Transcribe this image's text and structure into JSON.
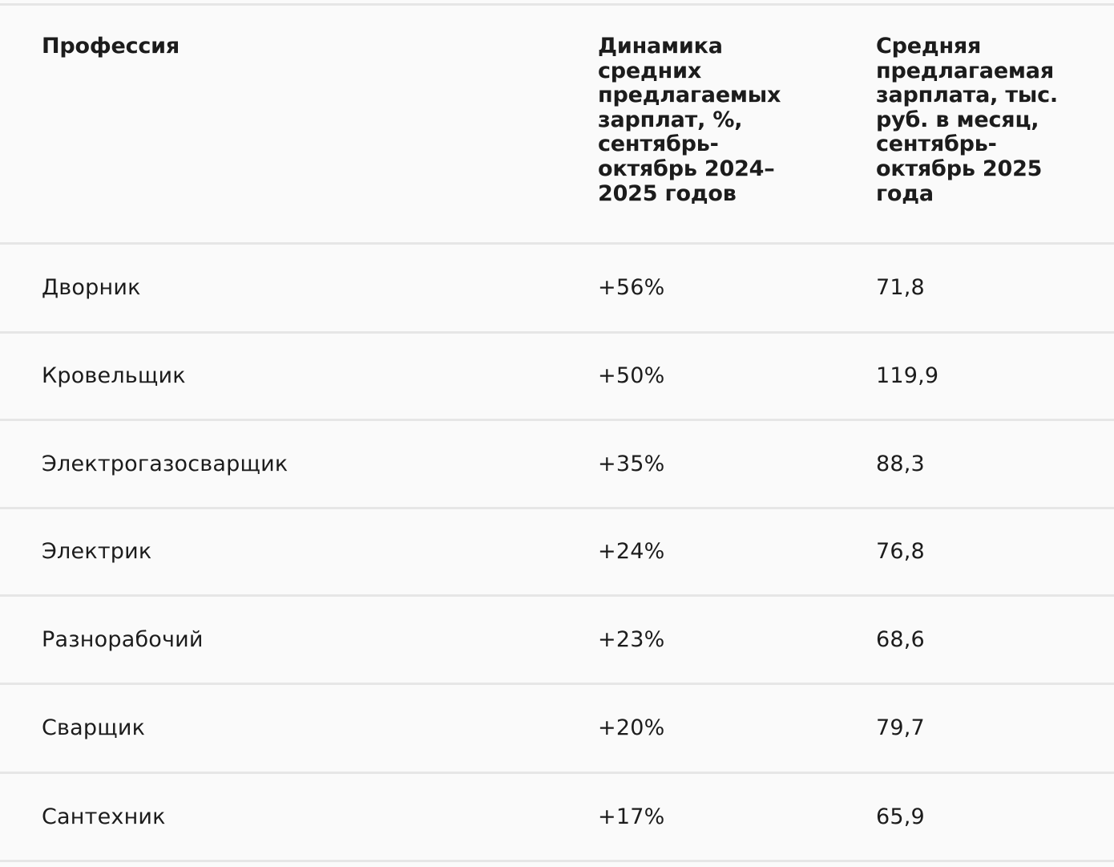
{
  "table": {
    "headers": [
      "Профессия",
      "Динамика средних предлагаемых зарплат, %, сентябрь-октябрь 2024–2025 годов",
      "Средняя предлагаемая зарплата, тыс. руб. в месяц, сентябрь-октябрь 2025 года"
    ],
    "header_lines": {
      "col2": [
        "Динамика",
        "средних",
        "предлагаемых",
        "зарплат, %,",
        "сентябрь-",
        "октябрь 2024–",
        "2025 годов"
      ],
      "col3": [
        "Средняя",
        "предлагаемая",
        "зарплата, тыс.",
        "руб. в месяц,",
        "сентябрь-",
        "октябрь 2025",
        "года"
      ]
    },
    "rows": [
      {
        "profession": "Дворник",
        "change": "+56%",
        "salary": "71,8"
      },
      {
        "profession": "Кровельщик",
        "change": "+50%",
        "salary": "119,9"
      },
      {
        "profession": "Электрогазосварщик",
        "change": "+35%",
        "salary": "88,3"
      },
      {
        "profession": "Электрик",
        "change": "+24%",
        "salary": "76,8"
      },
      {
        "profession": "Разнорабочий",
        "change": "+23%",
        "salary": "68,6"
      },
      {
        "profession": "Сварщик",
        "change": "+20%",
        "salary": "79,7"
      },
      {
        "profession": "Сантехник",
        "change": "+17%",
        "salary": "65,9"
      }
    ]
  }
}
